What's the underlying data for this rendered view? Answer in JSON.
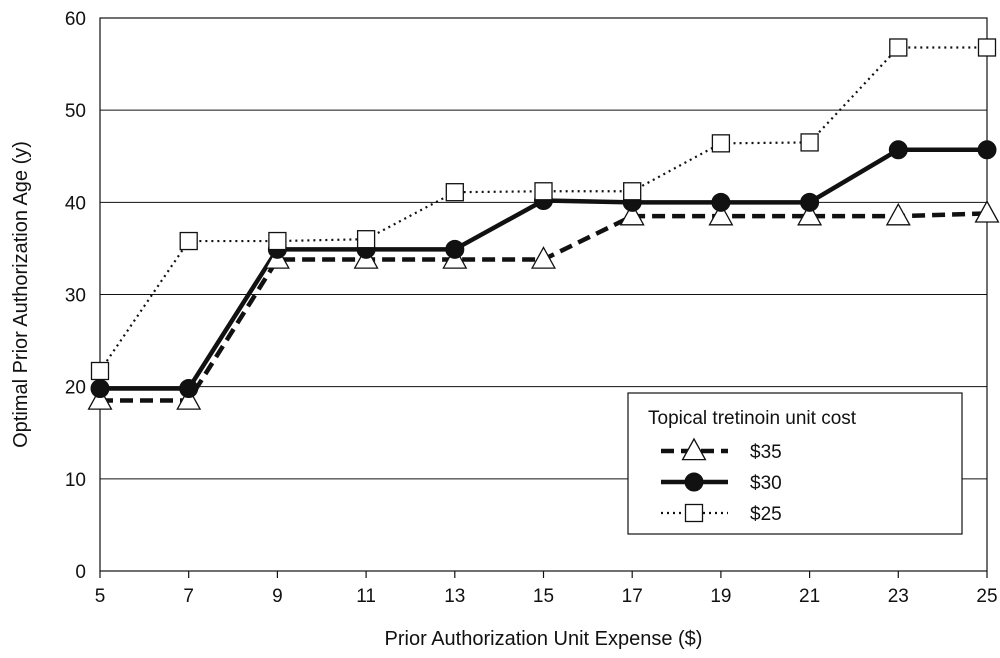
{
  "chart_data": {
    "type": "line",
    "title": "",
    "xlabel": "Prior Authorization Unit Expense ($)",
    "ylabel": "Optimal Prior Authorization Age (y)",
    "x": [
      5,
      7,
      9,
      11,
      13,
      15,
      17,
      19,
      21,
      23,
      25
    ],
    "x_tick_labels": [
      "5",
      "7",
      "9",
      "11",
      "13",
      "15",
      "17",
      "19",
      "21",
      "23",
      "25"
    ],
    "y_tick_labels": [
      "0",
      "10",
      "20",
      "30",
      "40",
      "50",
      "60"
    ],
    "xlim": [
      5,
      25
    ],
    "ylim": [
      0,
      60
    ],
    "grid": "horizontal",
    "legend": {
      "title": "Topical tretinoin unit cost",
      "placement": "bottom-right"
    },
    "series": [
      {
        "name": "$35",
        "style": "dashed",
        "marker": "open-triangle",
        "points": [
          [
            5,
            18.5
          ],
          [
            7,
            18.5
          ],
          [
            9,
            33.8
          ],
          [
            11,
            33.8
          ],
          [
            13,
            33.8
          ],
          [
            15,
            33.8
          ],
          [
            17,
            38.5
          ],
          [
            19,
            38.5
          ],
          [
            21,
            38.5
          ],
          [
            23,
            38.5
          ],
          [
            25,
            38.8
          ]
        ]
      },
      {
        "name": "$30",
        "style": "solid",
        "marker": "filled-circle",
        "points": [
          [
            5,
            19.8
          ],
          [
            7,
            19.8
          ],
          [
            9,
            34.9
          ],
          [
            11,
            34.9
          ],
          [
            13,
            34.9
          ],
          [
            15,
            40.2
          ],
          [
            17,
            40.0
          ],
          [
            19,
            40.0
          ],
          [
            21,
            40.0
          ],
          [
            23,
            45.7
          ],
          [
            25,
            45.7
          ]
        ]
      },
      {
        "name": "$25",
        "style": "dotted",
        "marker": "open-square",
        "points": [
          [
            5,
            21.7
          ],
          [
            7,
            35.8
          ],
          [
            9,
            35.8
          ],
          [
            11,
            36.0
          ],
          [
            13,
            41.1
          ],
          [
            15,
            41.2
          ],
          [
            17,
            41.2
          ],
          [
            19,
            46.4
          ],
          [
            21,
            46.5
          ],
          [
            23,
            56.8
          ],
          [
            25,
            56.8
          ]
        ]
      }
    ],
    "colors": {
      "line": "#111111",
      "grid": "#111111",
      "marker_fill_open": "#ffffff"
    }
  }
}
